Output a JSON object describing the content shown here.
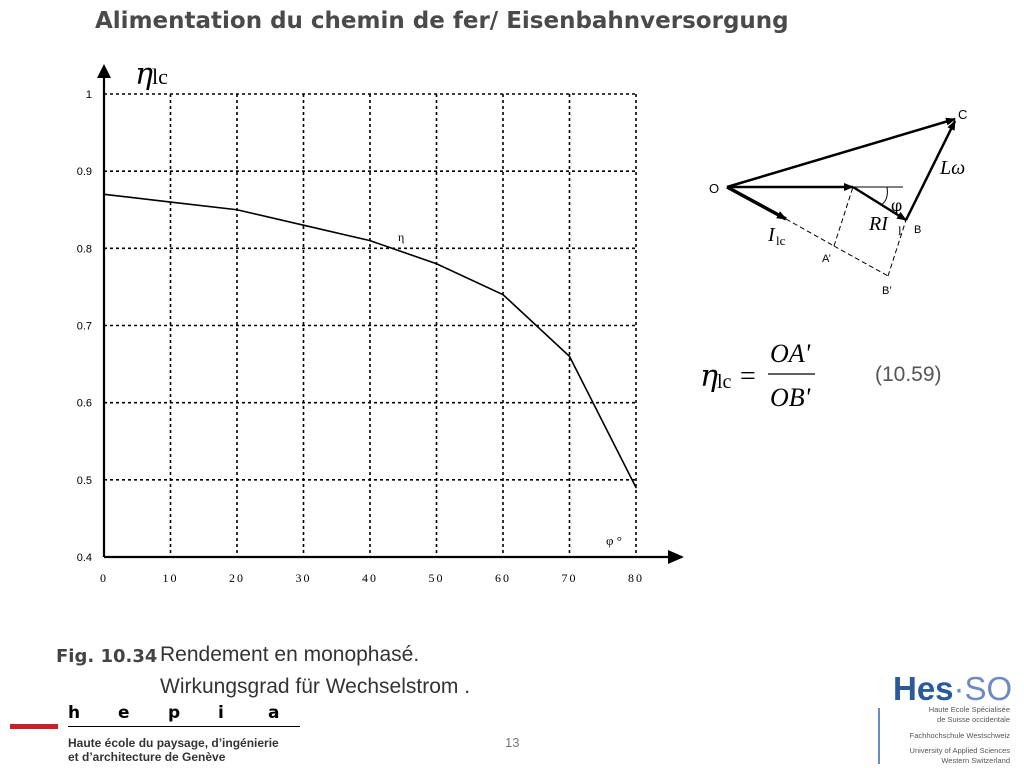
{
  "slide": {
    "title": "Alimentation du chemin de fer/ Eisenbahnversorgung",
    "caption_fig": "Fig. 10.34",
    "caption_line1": "Rendement en monophasé.",
    "caption_line2": "Wirkungsgrad für Wechselstrom .",
    "page_number": "13",
    "equation_number": "(10.59)"
  },
  "formula": {
    "lhs_symbol": "η",
    "lhs_sub": "lc",
    "equals": "=",
    "numerator": "OA'",
    "denominator": "OB'"
  },
  "phasor_diagram": {
    "label_o": "O",
    "label_c": "C",
    "label_b": "B",
    "label_a": "A’",
    "label_b_prime": "B’",
    "label_phi": "φ",
    "label_l_omega": "Lω",
    "label_ri": "RI",
    "label_ri_sub": "l",
    "label_i": "I",
    "label_i_sub": "lc"
  },
  "chart_data": {
    "type": "line",
    "y_axis_symbol": "η",
    "y_axis_sub": "lc",
    "x_axis_label": "φ °",
    "series_label": "η",
    "x": [
      0,
      10,
      20,
      30,
      40,
      50,
      60,
      70,
      80
    ],
    "series": [
      {
        "values": [
          0.87,
          0.86,
          0.85,
          0.83,
          0.81,
          0.78,
          0.74,
          0.66,
          0.49
        ]
      }
    ],
    "xlim": [
      0,
      80
    ],
    "ylim": [
      0.4,
      1.0
    ],
    "x_ticks": [
      "0",
      "10",
      "20",
      "30",
      "40",
      "50",
      "60",
      "70",
      "80"
    ],
    "y_ticks": [
      "0.4",
      "0.5",
      "0.6",
      "0.7",
      "0.8",
      "0.9",
      "1"
    ],
    "grid": true,
    "line_color": "#000000"
  },
  "logos": {
    "hepia_letters": [
      "h",
      "e",
      "p",
      "i",
      "a"
    ],
    "hepia_line1": "Haute école du paysage, d’ingénierie",
    "hepia_line2": "et d’architecture de Genève",
    "hes_main": "Hes",
    "hes_dot": "·",
    "hes_so": "SO",
    "hes_lines": [
      "Haute Ecole Spécialisée",
      "de Suisse occidentale",
      "Fachhochschule Westschweiz",
      "University of Applied Sciences",
      "Western Switzerland"
    ]
  }
}
